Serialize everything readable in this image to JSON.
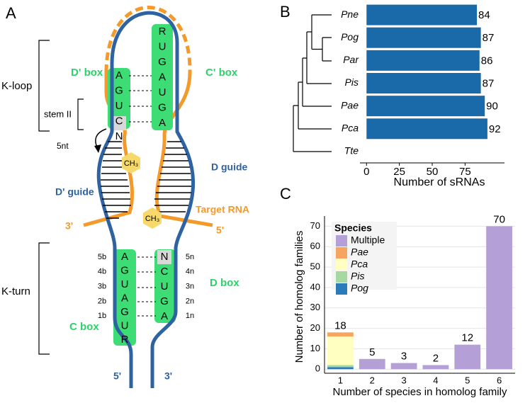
{
  "diagram": {
    "panel": "A",
    "k_loop": "K-loop",
    "stem": "stem II",
    "d_prime_box": "D' box",
    "c_prime_box": "C' box",
    "shift": "5nt",
    "methyl": [
      "CH₃",
      "CH₃"
    ],
    "d_guide": "D guide",
    "d_prime_guide": "D' guide",
    "target": "Target RNA",
    "target_3": "3'",
    "target_5": "5'",
    "k_turn": "K-turn",
    "d_box": "D box",
    "c_box": "C box",
    "end_5": "5'",
    "end_3": "3'",
    "top_left": [
      "A",
      "G",
      "U",
      "C",
      "N"
    ],
    "top_right": [
      "R",
      "U",
      "G",
      "A",
      "U",
      "G",
      "A"
    ],
    "bottom_left": [
      "A",
      "G",
      "U",
      "A",
      "G",
      "U",
      "R"
    ],
    "bottom_right": [
      "N",
      "C",
      "U",
      "G",
      "A"
    ],
    "left_pos": [
      "5b",
      "4b",
      "3b",
      "2b",
      "1b"
    ],
    "right_pos": [
      "5n",
      "4n",
      "3n",
      "2n",
      "1n"
    ]
  },
  "chart_data": [
    {
      "type": "barh",
      "panel": "B",
      "categories": [
        "Pne",
        "Pog",
        "Par",
        "Pis",
        "Pae",
        "Pca",
        "Tte"
      ],
      "values": [
        84,
        87,
        86,
        87,
        90,
        92,
        null
      ],
      "color": "#1a6aaa",
      "xlim": [
        -5,
        105
      ],
      "xticks": [
        0,
        25,
        50,
        75
      ],
      "xlabel": "Number of sRNAs"
    },
    {
      "type": "stacked_bar",
      "panel": "C",
      "categories": [
        "1",
        "2",
        "3",
        "4",
        "5",
        "6"
      ],
      "series": [
        {
          "name": "Multiple",
          "color": "#b49fd6",
          "values": [
            0,
            5,
            3,
            2,
            12,
            70
          ]
        },
        {
          "name": "Pae",
          "color": "#f6a45e",
          "values": [
            2,
            0,
            0,
            0,
            0,
            0
          ]
        },
        {
          "name": "Pca",
          "color": "#ffffc2",
          "values": [
            14,
            0,
            0,
            0,
            0,
            0
          ]
        },
        {
          "name": "Pis",
          "color": "#a8d8a2",
          "values": [
            1,
            0,
            0,
            0,
            0,
            0
          ]
        },
        {
          "name": "Pog",
          "color": "#2b7bba",
          "values": [
            1,
            0,
            0,
            0,
            0,
            0
          ]
        }
      ],
      "totals": [
        18,
        5,
        3,
        2,
        12,
        70
      ],
      "ylim": [
        -2,
        75
      ],
      "yticks": [
        0,
        10,
        20,
        30,
        40,
        50,
        60,
        70
      ],
      "grid": true,
      "xlabel": "Number of species in homolog family",
      "ylabel": "Number of homolog families",
      "legend_title": "Species",
      "legend": "top-left"
    }
  ]
}
